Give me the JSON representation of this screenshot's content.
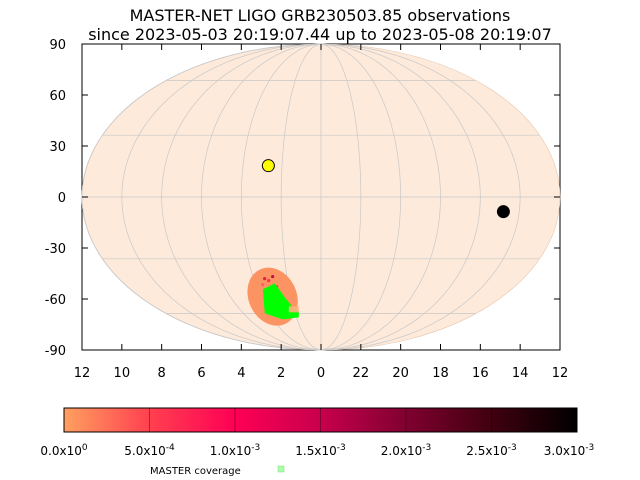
{
  "chart_data": {
    "type": "scatter",
    "projection": "mollweide",
    "title": "MASTER-NET LIGO GRB230503.85 observations",
    "subtitle": "since 2023-05-03 20:19:07.44 up to 2023-05-08 20:19:07",
    "xlabel": "",
    "ylabel": "",
    "x_ticks": [
      "12",
      "10",
      "8",
      "6",
      "4",
      "2",
      "0",
      "22",
      "20",
      "18",
      "16",
      "14",
      "12"
    ],
    "y_ticks": [
      "90",
      "60",
      "30",
      "0",
      "-30",
      "-60",
      "-90"
    ],
    "ylim": [
      -90,
      90
    ],
    "grid": true,
    "background_color": "#fdeadb",
    "points": [
      {
        "label": "sun",
        "ra_h": 2.7,
        "dec": 15,
        "color": "#ffff00"
      },
      {
        "label": "moon",
        "ra_h": 14.8,
        "dec": -7,
        "color": "#000000"
      }
    ],
    "probability_region": {
      "ra_h": 3.2,
      "dec": -50,
      "color": "#fb9462"
    },
    "coverage_region": {
      "ra_h": 3.0,
      "dec": -55,
      "color": "#00ff00"
    },
    "colorbar": {
      "min": 0,
      "max": 0.003,
      "tick_labels": [
        "0.0x10^0",
        "5.0x10^-4",
        "1.0x10^-3",
        "1.5x10^-3",
        "2.0x10^-3",
        "2.5x10^-3",
        "3.0x10^-3"
      ],
      "colors": [
        "#ffa060",
        "#ff4050",
        "#ff0055",
        "#c8004c",
        "#800030",
        "#400010",
        "#000000"
      ]
    },
    "legend": {
      "label": "MASTER coverage",
      "color": "#aaffaa",
      "placement": "bottom"
    }
  }
}
